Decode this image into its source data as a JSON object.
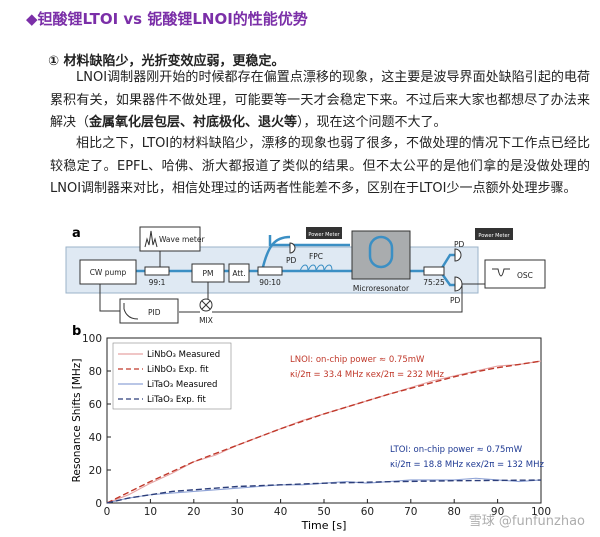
{
  "heading": "◆钽酸锂LTOI vs 铌酸锂LNOI的性能优势",
  "subheading": "① 材料缺陷少，光折变效应弱，更稳定。",
  "paragraphs": [
    {
      "parts": [
        {
          "text": "LNOI调制器刚开始的时候都存在偏置点漂移的现象，这主要是波导界面处缺陷引起的电荷累积有关，如果器件不做处理，可能要等一天才会稳定下来。不过后来大家也都想尽了办法来解决（",
          "bold": false
        },
        {
          "text": "金属氧化层包层、衬底极化、退火等",
          "bold": true
        },
        {
          "text": "），现在这个问题不大了。",
          "bold": false
        }
      ]
    },
    {
      "parts": [
        {
          "text": "相比之下，LTOI的材料缺陷少，漂移的现象也弱了很多，不做处理的情况下工作点已经比较稳定了。EPFL、哈佛、浙大都报道了类似的结果。但不太公平的是他们拿的是没做处理的LNOI调制器来对比，相信处理过的话两者性能差不多，区别在于LTOI少一点额外处理步骤。",
          "bold": false
        }
      ]
    }
  ],
  "figure": {
    "panel_a": {
      "label": "a",
      "labels": {
        "wave_meter": "Wave meter",
        "cw_pump": "CW pump",
        "split1": "99:1",
        "pm": "PM",
        "att": "Att.",
        "split2": "90:10",
        "fpc": "FPC",
        "microresonator": "Microresonator",
        "pd1": "PD",
        "power_meter1": "Power Meter",
        "pd2": "PD",
        "power_meter2": "Power Meter",
        "split3": "75:25",
        "pd3": "PD",
        "osc": "OSC",
        "pid": "PID",
        "mix": "MIX"
      }
    },
    "panel_b": {
      "label": "b",
      "type": "line",
      "xlabel": "Time [s]",
      "ylabel": "Resonance Shifts [MHz]",
      "x": [
        0,
        5,
        10,
        15,
        20,
        25,
        30,
        35,
        40,
        45,
        50,
        55,
        60,
        65,
        70,
        75,
        80,
        85,
        90,
        95,
        100
      ],
      "xlim": [
        0,
        100
      ],
      "ylim": [
        0,
        100
      ],
      "xticks": [
        0,
        10,
        20,
        30,
        40,
        50,
        60,
        70,
        80,
        90,
        100
      ],
      "yticks": [
        0,
        20,
        40,
        60,
        80,
        100
      ],
      "legend": "upper left",
      "series": [
        {
          "name": "LiNbO₃ Measured",
          "color": "#e6a3a3",
          "dashed": false,
          "values": [
            0,
            5,
            12,
            18,
            25,
            29,
            35,
            40,
            45,
            50,
            54,
            58,
            62,
            66,
            70,
            74,
            77,
            80,
            83,
            84,
            86
          ]
        },
        {
          "name": "LiNbO₃ Exp. fit",
          "color": "#c0392b",
          "dashed": true,
          "values": [
            0,
            6.5,
            13,
            19,
            25,
            30,
            35,
            40,
            45,
            49.5,
            54,
            58,
            62,
            66,
            69.5,
            73,
            76.5,
            79.5,
            82,
            84,
            86
          ]
        },
        {
          "name": "LiTaO₃ Measured",
          "color": "#8fa3d6",
          "dashed": false,
          "values": [
            0,
            3,
            5,
            6,
            7,
            8,
            9,
            10,
            11,
            11,
            12,
            13,
            12,
            13,
            14,
            14,
            14,
            15,
            14,
            13,
            14
          ]
        },
        {
          "name": "LiTaO₃ Exp. fit",
          "color": "#2c3e7a",
          "dashed": true,
          "values": [
            0,
            3,
            5,
            7,
            8,
            9,
            10,
            10.5,
            11,
            11.5,
            12,
            12.3,
            12.6,
            12.9,
            13.1,
            13.3,
            13.5,
            13.6,
            13.7,
            13.8,
            13.9
          ]
        }
      ],
      "annotations": [
        {
          "text": "LNOI:  on-chip power ≈ 0.75mW",
          "color": "#c0392b"
        },
        {
          "text": "κi/2π = 33.4 MHz κex/2π = 232 MHz",
          "color": "#c0392b"
        },
        {
          "text": "LTOI:  on-chip power ≈ 0.75mW",
          "color": "#1f3a93"
        },
        {
          "text": "κi/2π = 18.8 MHz κex/2π = 132 MHz",
          "color": "#1f3a93"
        }
      ]
    }
  },
  "watermark": "雪球 @funfunzhao"
}
